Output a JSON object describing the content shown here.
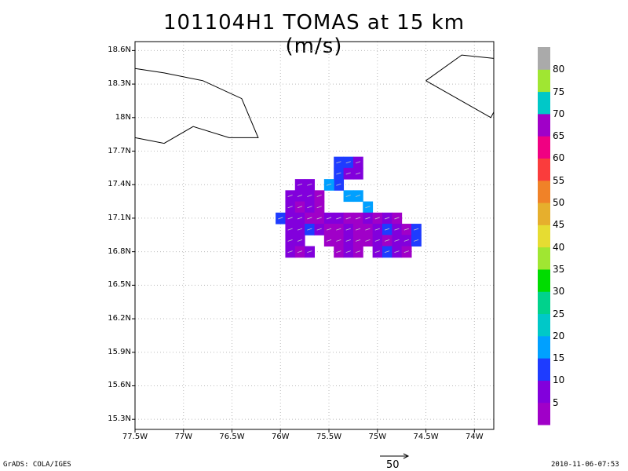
{
  "title": "101104H1 TOMAS at 15 km (m/s)",
  "axes": {
    "lat_labels": [
      "18.6N",
      "18.3N",
      "18N",
      "17.7N",
      "17.4N",
      "17.1N",
      "16.8N",
      "16.5N",
      "16.2N",
      "15.9N",
      "15.6N",
      "15.3N"
    ],
    "lat_values": [
      18.6,
      18.3,
      18.0,
      17.7,
      17.4,
      17.1,
      16.8,
      16.5,
      16.2,
      15.9,
      15.6,
      15.3
    ],
    "lon_labels": [
      "77.5W",
      "77W",
      "76.5W",
      "76W",
      "75.5W",
      "75W",
      "74.5W",
      "74W"
    ],
    "lon_values": [
      -77.5,
      -77.0,
      -76.5,
      -76.0,
      -75.5,
      -75.0,
      -74.5,
      -74.0
    ],
    "lat_range": [
      15.21,
      18.68
    ],
    "lon_range": [
      -77.5,
      -73.8
    ],
    "grid": true
  },
  "colorbar": {
    "labels": [
      "5",
      "10",
      "15",
      "20",
      "25",
      "30",
      "35",
      "40",
      "45",
      "50",
      "55",
      "60",
      "65",
      "70",
      "75",
      "80"
    ],
    "colors": [
      "#a000c8",
      "#8200dc",
      "#1e3cff",
      "#00a0ff",
      "#00c8c8",
      "#00d28c",
      "#00dc00",
      "#a0e632",
      "#e6dc32",
      "#e6af2d",
      "#f08228",
      "#fa3c3c",
      "#f00082",
      "#a000c8",
      "#00c8c8",
      "#a0e632",
      "#aaaaaa"
    ]
  },
  "reference_vector": {
    "label": "50"
  },
  "footer": {
    "left": "GrADS: COLA/IGES",
    "right": "2010-11-06-07:53"
  },
  "coastlines": [
    [
      [
        -77.5,
        18.44
      ],
      [
        -77.2,
        18.4
      ],
      [
        -76.8,
        18.33
      ],
      [
        -76.4,
        18.17
      ],
      [
        -76.23,
        17.82
      ],
      [
        -76.53,
        17.82
      ],
      [
        -76.9,
        17.92
      ],
      [
        -77.2,
        17.77
      ],
      [
        -77.5,
        17.82
      ]
    ],
    [
      [
        -74.5,
        18.33
      ],
      [
        -74.13,
        18.56
      ],
      [
        -73.8,
        18.53
      ]
    ],
    [
      [
        -74.5,
        18.33
      ],
      [
        -73.83,
        18.0
      ],
      [
        -73.8,
        18.05
      ]
    ]
  ],
  "wind_cells": {
    "cell_deg": 0.1,
    "cells": [
      [
        -75.4,
        17.6,
        2
      ],
      [
        -75.3,
        17.6,
        2
      ],
      [
        -75.2,
        17.6,
        1
      ],
      [
        -75.4,
        17.5,
        2
      ],
      [
        -75.3,
        17.5,
        1
      ],
      [
        -75.2,
        17.5,
        1
      ],
      [
        -75.4,
        17.4,
        2
      ],
      [
        -75.5,
        17.4,
        3
      ],
      [
        -75.3,
        17.3,
        3
      ],
      [
        -75.2,
        17.3,
        3
      ],
      [
        -75.1,
        17.2,
        3
      ],
      [
        -75.8,
        17.4,
        1
      ],
      [
        -75.7,
        17.4,
        1
      ],
      [
        -75.9,
        17.3,
        1
      ],
      [
        -75.8,
        17.3,
        1
      ],
      [
        -75.7,
        17.3,
        1
      ],
      [
        -75.6,
        17.3,
        0
      ],
      [
        -75.9,
        17.2,
        1
      ],
      [
        -75.8,
        17.2,
        0
      ],
      [
        -75.7,
        17.2,
        1
      ],
      [
        -75.6,
        17.2,
        0
      ],
      [
        -76.0,
        17.1,
        2
      ],
      [
        -75.9,
        17.1,
        1
      ],
      [
        -75.8,
        17.1,
        1
      ],
      [
        -75.7,
        17.1,
        0
      ],
      [
        -75.6,
        17.1,
        0
      ],
      [
        -75.5,
        17.1,
        1
      ],
      [
        -75.4,
        17.1,
        1
      ],
      [
        -75.3,
        17.1,
        0
      ],
      [
        -75.2,
        17.1,
        0
      ],
      [
        -75.1,
        17.1,
        1
      ],
      [
        -75.0,
        17.1,
        0
      ],
      [
        -74.9,
        17.1,
        1
      ],
      [
        -74.8,
        17.1,
        0
      ],
      [
        -75.9,
        17.0,
        1
      ],
      [
        -75.8,
        17.0,
        1
      ],
      [
        -75.7,
        17.0,
        2
      ],
      [
        -75.6,
        17.0,
        1
      ],
      [
        -75.5,
        17.0,
        0
      ],
      [
        -75.4,
        17.0,
        0
      ],
      [
        -75.3,
        17.0,
        1
      ],
      [
        -75.2,
        17.0,
        0
      ],
      [
        -75.1,
        17.0,
        0
      ],
      [
        -75.0,
        17.0,
        1
      ],
      [
        -74.9,
        17.0,
        2
      ],
      [
        -74.8,
        17.0,
        1
      ],
      [
        -74.7,
        17.0,
        0
      ],
      [
        -74.6,
        17.0,
        2
      ],
      [
        -75.9,
        16.9,
        1
      ],
      [
        -75.8,
        16.9,
        1
      ],
      [
        -75.5,
        16.9,
        0
      ],
      [
        -75.4,
        16.9,
        0
      ],
      [
        -75.3,
        16.9,
        1
      ],
      [
        -75.2,
        16.9,
        0
      ],
      [
        -75.1,
        16.9,
        0
      ],
      [
        -75.0,
        16.9,
        1
      ],
      [
        -74.9,
        16.9,
        0
      ],
      [
        -74.8,
        16.9,
        1
      ],
      [
        -74.7,
        16.9,
        1
      ],
      [
        -74.6,
        16.9,
        2
      ],
      [
        -75.9,
        16.8,
        1
      ],
      [
        -75.8,
        16.8,
        0
      ],
      [
        -75.7,
        16.8,
        1
      ],
      [
        -75.4,
        16.8,
        0
      ],
      [
        -75.3,
        16.8,
        1
      ],
      [
        -75.2,
        16.8,
        0
      ],
      [
        -75.0,
        16.8,
        1
      ],
      [
        -74.9,
        16.8,
        2
      ],
      [
        -74.8,
        16.8,
        1
      ],
      [
        -74.7,
        16.8,
        0
      ]
    ]
  }
}
